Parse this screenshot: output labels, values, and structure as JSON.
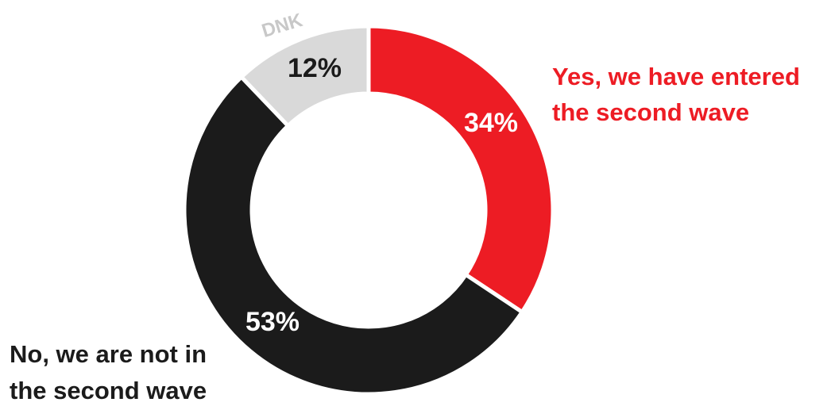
{
  "chart_data": {
    "type": "pie",
    "variant": "donut",
    "slices": [
      {
        "key": "yes",
        "label_lines": [
          "Yes, we have entered",
          "the second wave"
        ],
        "value": 34,
        "display": "34%",
        "color": "#ed1c24",
        "value_text_color": "#ffffff"
      },
      {
        "key": "no",
        "label_lines": [
          "No, we are not in",
          "the second wave"
        ],
        "value": 53,
        "display": "53%",
        "color": "#1b1b1b",
        "value_text_color": "#ffffff"
      },
      {
        "key": "dnk",
        "label_lines": [
          "DNK"
        ],
        "value": 12,
        "display": "12%",
        "color": "#d9d9d9",
        "value_text_color": "#1b1b1b"
      }
    ],
    "label_colors": {
      "yes": "#ed1c24",
      "no": "#1b1b1b",
      "dnk": "#c8c8c8"
    }
  }
}
